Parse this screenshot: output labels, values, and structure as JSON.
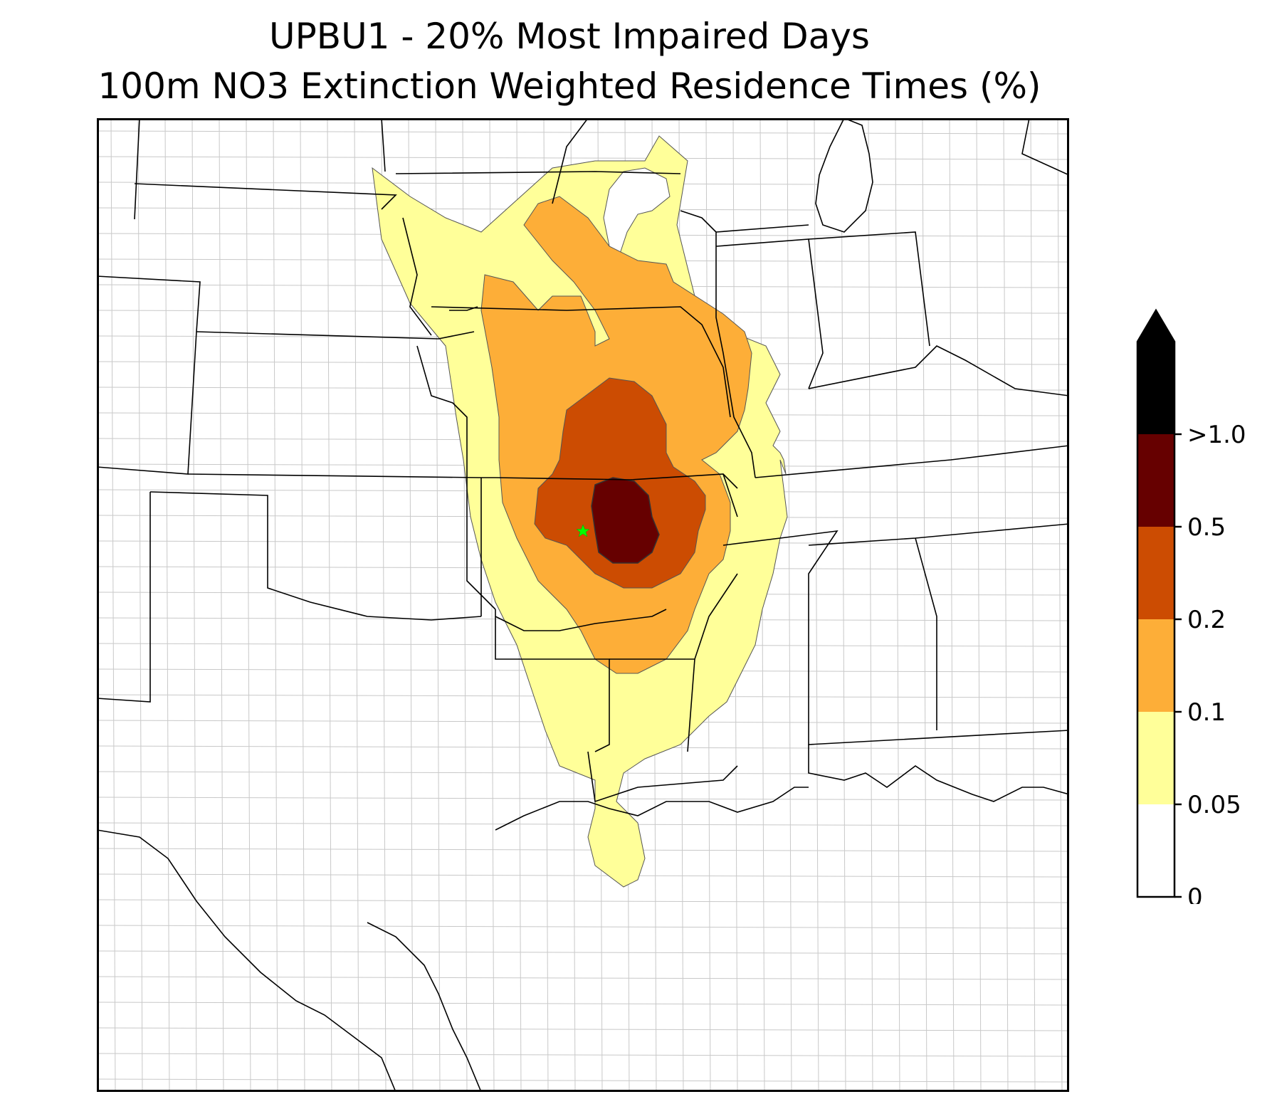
{
  "title": "UPBU1 - 20% Most Impaired Days",
  "subtitle": "100m NO3 Extinction Weighted Residence Times (%)",
  "map": {
    "region": "Central and southern United States (Great Plains to Gulf Coast)",
    "site_marker": "green star",
    "site_color": "#00ff00",
    "state_line_color": "#000000",
    "county_line_color": "#9a9a9a"
  },
  "colorbar": {
    "levels": [
      "0",
      "0.05",
      "0.1",
      "0.2",
      "0.5",
      ">1.0"
    ],
    "bins": [
      {
        "range": "0-0.05",
        "color": "#ffffff"
      },
      {
        "range": "0.05-0.1",
        "color": "#ffff99"
      },
      {
        "range": "0.1-0.2",
        "color": "#fdae38"
      },
      {
        "range": "0.2-0.5",
        "color": "#cc4c02"
      },
      {
        "range": "0.5-1.0",
        "color": "#660000"
      },
      {
        "range": ">1.0",
        "color": "#000000"
      }
    ],
    "extend": "max"
  }
}
